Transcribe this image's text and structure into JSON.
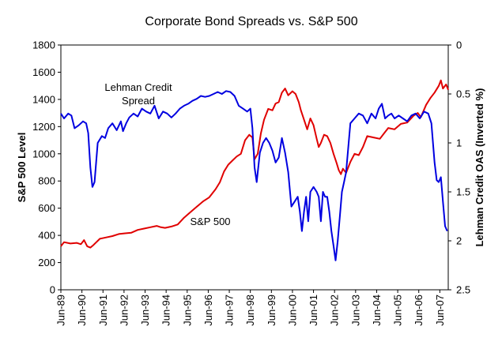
{
  "chart_data": {
    "type": "line",
    "title": "Corporate Bond Spreads vs. S&P 500",
    "ylabel_left": "S&P 500 Level",
    "ylabel_right": "Lehman Credit OAS (Inverted %)",
    "ylim_left": [
      0,
      1800
    ],
    "ylim_right": [
      0,
      2.5
    ],
    "right_axis_inverted": true,
    "y_ticks_left": [
      "0",
      "200",
      "400",
      "600",
      "800",
      "1000",
      "1200",
      "1400",
      "1600",
      "1800"
    ],
    "y_ticks_right": [
      "0",
      "0.5",
      "1",
      "1.5",
      "2",
      "2.5"
    ],
    "x_tick_labels": [
      "Jun-89",
      "Jun-90",
      "Jun-91",
      "Jun-92",
      "Jun-93",
      "Jun-94",
      "Jun-95",
      "Jun-96",
      "Jun-97",
      "Jun-98",
      "Jun-99",
      "Jun-00",
      "Jun-01",
      "Jun-02",
      "Jun-03",
      "Jun-04",
      "Jun-05",
      "Jun-06",
      "Jun-07"
    ],
    "xlim": [
      1989.45,
      2007.85
    ],
    "legend": "none",
    "grid": false,
    "annotations": [
      {
        "text": "Lehman Credit",
        "series": "Lehman Credit Spread"
      },
      {
        "text": "Spread",
        "series": "Lehman Credit Spread"
      },
      {
        "text": "S&P 500",
        "series": "S&P 500"
      }
    ],
    "series": [
      {
        "name": "S&P 500",
        "axis": "left",
        "color": "#e00000",
        "x": [
          1989.45,
          1989.6,
          1989.9,
          1990.2,
          1990.4,
          1990.55,
          1990.7,
          1990.85,
          1991.0,
          1991.3,
          1991.6,
          1991.9,
          1992.2,
          1992.5,
          1992.8,
          1993.1,
          1993.4,
          1993.7,
          1994.0,
          1994.2,
          1994.4,
          1994.7,
          1995.0,
          1995.3,
          1995.6,
          1995.9,
          1996.2,
          1996.5,
          1996.8,
          1997.0,
          1997.2,
          1997.4,
          1997.6,
          1997.8,
          1998.0,
          1998.2,
          1998.4,
          1998.55,
          1998.65,
          1998.8,
          1998.95,
          1999.1,
          1999.3,
          1999.5,
          1999.65,
          1999.8,
          1999.95,
          2000.1,
          2000.25,
          2000.45,
          2000.6,
          2000.75,
          2000.85,
          2001.0,
          2001.15,
          2001.3,
          2001.45,
          2001.6,
          2001.7,
          2001.8,
          2001.95,
          2002.1,
          2002.25,
          2002.4,
          2002.55,
          2002.65,
          2002.75,
          2002.85,
          2003.0,
          2003.2,
          2003.4,
          2003.6,
          2003.8,
          2004.0,
          2004.3,
          2004.6,
          2004.8,
          2005.0,
          2005.3,
          2005.6,
          2005.9,
          2006.2,
          2006.4,
          2006.55,
          2006.8,
          2007.0,
          2007.2,
          2007.4,
          2007.5,
          2007.6,
          2007.75,
          2007.85
        ],
        "values": [
          320,
          350,
          340,
          345,
          335,
          365,
          320,
          310,
          330,
          375,
          385,
          395,
          410,
          415,
          420,
          440,
          450,
          460,
          470,
          460,
          455,
          465,
          480,
          530,
          570,
          610,
          650,
          680,
          740,
          790,
          870,
          920,
          950,
          980,
          1000,
          1100,
          1140,
          1120,
          960,
          1000,
          1150,
          1250,
          1330,
          1320,
          1370,
          1380,
          1450,
          1480,
          1430,
          1460,
          1440,
          1380,
          1320,
          1250,
          1180,
          1260,
          1210,
          1110,
          1050,
          1080,
          1140,
          1130,
          1080,
          1000,
          930,
          880,
          850,
          890,
          860,
          940,
          1000,
          990,
          1050,
          1130,
          1120,
          1110,
          1150,
          1190,
          1180,
          1220,
          1230,
          1280,
          1300,
          1270,
          1360,
          1410,
          1450,
          1500,
          1540,
          1480,
          1510,
          1470
        ]
      },
      {
        "name": "Lehman Credit Spread",
        "axis": "right",
        "color": "#0000e0",
        "x": [
          1989.45,
          1989.6,
          1989.8,
          1989.95,
          1990.1,
          1990.3,
          1990.5,
          1990.65,
          1990.75,
          1990.85,
          1990.95,
          1991.05,
          1991.2,
          1991.4,
          1991.55,
          1991.7,
          1991.9,
          1992.1,
          1992.3,
          1992.4,
          1992.55,
          1992.7,
          1992.9,
          1993.1,
          1993.3,
          1993.5,
          1993.7,
          1993.9,
          1994.1,
          1994.3,
          1994.5,
          1994.7,
          1994.9,
          1995.1,
          1995.3,
          1995.5,
          1995.7,
          1995.9,
          1996.1,
          1996.3,
          1996.5,
          1996.7,
          1996.9,
          1997.1,
          1997.3,
          1997.5,
          1997.7,
          1997.9,
          1998.1,
          1998.3,
          1998.45,
          1998.55,
          1998.65,
          1998.75,
          1998.9,
          1999.05,
          1999.2,
          1999.35,
          1999.5,
          1999.65,
          1999.8,
          1999.95,
          2000.1,
          2000.25,
          2000.4,
          2000.55,
          2000.7,
          2000.8,
          2000.9,
          2001.0,
          2001.1,
          2001.2,
          2001.3,
          2001.45,
          2001.6,
          2001.7,
          2001.8,
          2001.9,
          2002.0,
          2002.1,
          2002.2,
          2002.3,
          2002.4,
          2002.5,
          2002.6,
          2002.7,
          2002.8,
          2002.9,
          2003.0,
          2003.2,
          2003.4,
          2003.6,
          2003.8,
          2004.0,
          2004.2,
          2004.4,
          2004.55,
          2004.7,
          2004.85,
          2005.0,
          2005.15,
          2005.3,
          2005.5,
          2005.7,
          2005.9,
          2006.1,
          2006.3,
          2006.5,
          2006.7,
          2006.9,
          2007.05,
          2007.2,
          2007.3,
          2007.4,
          2007.5,
          2007.6,
          2007.7,
          2007.8
        ],
        "values": [
          0.7,
          0.75,
          0.7,
          0.72,
          0.85,
          0.82,
          0.78,
          0.8,
          0.9,
          1.25,
          1.45,
          1.4,
          1.0,
          0.93,
          0.95,
          0.85,
          0.8,
          0.87,
          0.78,
          0.88,
          0.8,
          0.74,
          0.7,
          0.73,
          0.65,
          0.68,
          0.7,
          0.62,
          0.75,
          0.68,
          0.7,
          0.74,
          0.7,
          0.65,
          0.62,
          0.6,
          0.57,
          0.55,
          0.52,
          0.53,
          0.52,
          0.5,
          0.48,
          0.5,
          0.47,
          0.48,
          0.52,
          0.62,
          0.65,
          0.68,
          0.65,
          0.85,
          1.25,
          1.4,
          1.1,
          1.0,
          0.95,
          1.0,
          1.08,
          1.2,
          1.15,
          0.95,
          1.1,
          1.3,
          1.65,
          1.6,
          1.55,
          1.7,
          1.9,
          1.7,
          1.55,
          1.8,
          1.5,
          1.45,
          1.5,
          1.55,
          1.8,
          1.5,
          1.55,
          1.55,
          1.7,
          1.9,
          2.05,
          2.2,
          2.0,
          1.75,
          1.5,
          1.4,
          1.3,
          0.8,
          0.75,
          0.7,
          0.72,
          0.8,
          0.7,
          0.75,
          0.65,
          0.6,
          0.75,
          0.72,
          0.7,
          0.75,
          0.72,
          0.75,
          0.78,
          0.72,
          0.7,
          0.75,
          0.68,
          0.7,
          0.8,
          1.2,
          1.38,
          1.4,
          1.35,
          1.6,
          1.85,
          1.9
        ]
      }
    ]
  }
}
